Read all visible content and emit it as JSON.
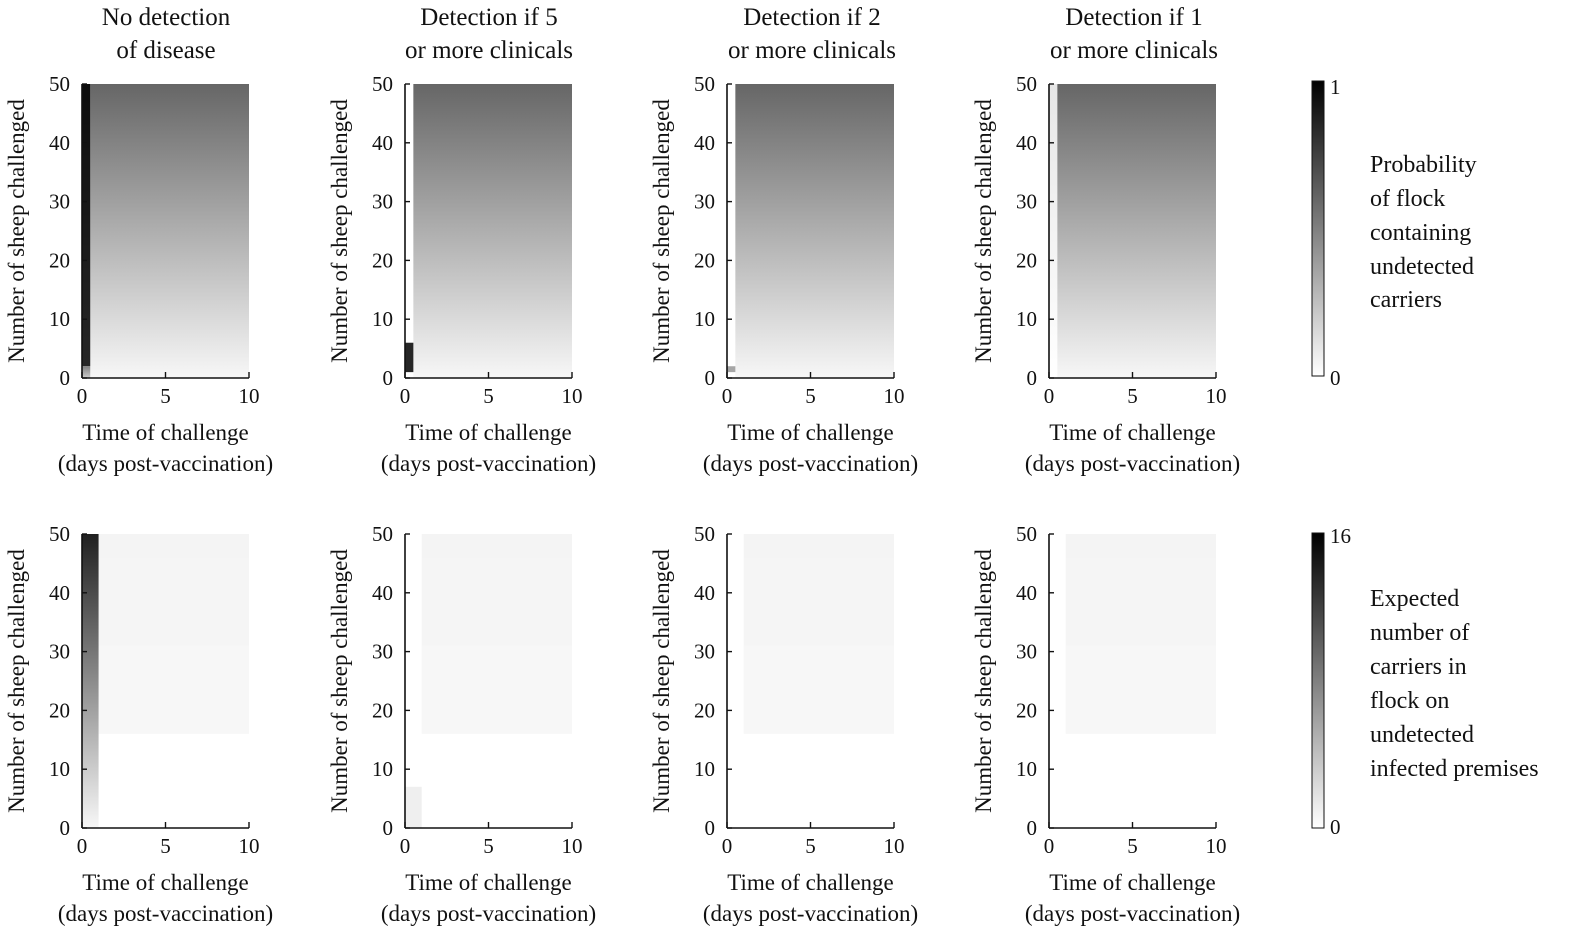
{
  "figure": {
    "columns": [
      {
        "title": [
          "No detection",
          "of disease"
        ]
      },
      {
        "title": [
          "Detection if 5",
          "or more clinicals"
        ]
      },
      {
        "title": [
          "Detection if 2",
          "or more clinicals"
        ]
      },
      {
        "title": [
          "Detection if 1",
          "or more clinicals"
        ]
      }
    ],
    "xlabel": [
      "Time of challenge",
      "(days post-vaccination)"
    ],
    "ylabel": "Number of sheep challenged",
    "colorbars": [
      {
        "min_label": "0",
        "max_label": "1",
        "label": [
          "Probability",
          "of flock",
          "containing",
          "undetected",
          "carriers"
        ]
      },
      {
        "min_label": "0",
        "max_label": "16",
        "label": [
          "Expected",
          "number of",
          "carriers in",
          "flock on",
          "undetected",
          "infected premises"
        ]
      }
    ]
  },
  "chart_data": [
    {
      "type": "heatmap",
      "row": 1,
      "column": 1,
      "title": "No detection of disease",
      "xlabel": "Time of challenge (days post-vaccination)",
      "ylabel": "Number of sheep challenged",
      "xlim": [
        0,
        10
      ],
      "ylim": [
        0,
        50
      ],
      "xticks": [
        0,
        5,
        10
      ],
      "yticks": [
        0,
        10,
        20,
        30,
        40,
        50
      ],
      "colorscale": "white-to-black",
      "clim": [
        0,
        1
      ],
      "colorbar_label": "Probability of flock containing undetected carriers",
      "bands": [
        {
          "x": [
            0,
            0.5
          ],
          "y": [
            2,
            50
          ],
          "value_bottom": 0.85,
          "value_top": 0.95
        },
        {
          "x": [
            0,
            0.5
          ],
          "y": [
            0,
            2
          ],
          "value_bottom": 0.2,
          "value_top": 0.5
        },
        {
          "x": [
            0.5,
            10
          ],
          "y": [
            0,
            50
          ],
          "value_bottom": 0.03,
          "value_top": 0.6
        }
      ]
    },
    {
      "type": "heatmap",
      "row": 1,
      "column": 2,
      "title": "Detection if 5 or more clinicals",
      "xlabel": "Time of challenge (days post-vaccination)",
      "ylabel": "Number of sheep challenged",
      "xlim": [
        0,
        10
      ],
      "ylim": [
        0,
        50
      ],
      "xticks": [
        0,
        5,
        10
      ],
      "yticks": [
        0,
        10,
        20,
        30,
        40,
        50
      ],
      "colorscale": "white-to-black",
      "clim": [
        0,
        1
      ],
      "colorbar_label": "Probability of flock containing undetected carriers",
      "bands": [
        {
          "x": [
            0,
            0.5
          ],
          "y": [
            10,
            50
          ],
          "value_bottom": 0.0,
          "value_top": 0.0
        },
        {
          "x": [
            0,
            1
          ],
          "y": [
            1,
            6
          ],
          "value_bottom": 0.85,
          "value_top": 0.85
        },
        {
          "x": [
            0.5,
            10
          ],
          "y": [
            0,
            50
          ],
          "value_bottom": 0.03,
          "value_top": 0.6
        }
      ]
    },
    {
      "type": "heatmap",
      "row": 1,
      "column": 3,
      "title": "Detection if 2 or more clinicals",
      "xlabel": "Time of challenge (days post-vaccination)",
      "ylabel": "Number of sheep challenged",
      "xlim": [
        0,
        10
      ],
      "ylim": [
        0,
        50
      ],
      "xticks": [
        0,
        5,
        10
      ],
      "yticks": [
        0,
        10,
        20,
        30,
        40,
        50
      ],
      "colorscale": "white-to-black",
      "clim": [
        0,
        1
      ],
      "colorbar_label": "Probability of flock containing undetected carriers",
      "bands": [
        {
          "x": [
            0,
            0.5
          ],
          "y": [
            3,
            50
          ],
          "value_bottom": 0.0,
          "value_top": 0.0
        },
        {
          "x": [
            0,
            0.8
          ],
          "y": [
            1,
            2
          ],
          "value_bottom": 0.35,
          "value_top": 0.35
        },
        {
          "x": [
            0.5,
            10
          ],
          "y": [
            0,
            50
          ],
          "value_bottom": 0.03,
          "value_top": 0.6
        }
      ]
    },
    {
      "type": "heatmap",
      "row": 1,
      "column": 4,
      "title": "Detection if 1 or more clinicals",
      "xlabel": "Time of challenge (days post-vaccination)",
      "ylabel": "Number of sheep challenged",
      "xlim": [
        0,
        10
      ],
      "ylim": [
        0,
        50
      ],
      "xticks": [
        0,
        5,
        10
      ],
      "yticks": [
        0,
        10,
        20,
        30,
        40,
        50
      ],
      "colorscale": "white-to-black",
      "clim": [
        0,
        1
      ],
      "colorbar_label": "Probability of flock containing undetected carriers",
      "bands": [
        {
          "x": [
            0,
            0.5
          ],
          "y": [
            0,
            50
          ],
          "value_bottom": 0.0,
          "value_top": 0.1
        },
        {
          "x": [
            0.5,
            10
          ],
          "y": [
            0,
            50
          ],
          "value_bottom": 0.03,
          "value_top": 0.6
        }
      ]
    },
    {
      "type": "heatmap",
      "row": 2,
      "column": 1,
      "title": "No detection of disease",
      "xlabel": "Time of challenge (days post-vaccination)",
      "ylabel": "Number of sheep challenged",
      "xlim": [
        0,
        10
      ],
      "ylim": [
        0,
        50
      ],
      "xticks": [
        0,
        5,
        10
      ],
      "yticks": [
        0,
        10,
        20,
        30,
        40,
        50
      ],
      "colorscale": "white-to-black",
      "clim": [
        0,
        16
      ],
      "colorbar_label": "Expected number of carriers in flock on undetected infected premises",
      "bands": [
        {
          "x": [
            0,
            1
          ],
          "y": [
            0,
            50
          ],
          "value_bottom": 0.5,
          "value_top": 14
        },
        {
          "x": [
            1,
            10
          ],
          "y": [
            0,
            16
          ],
          "value_bottom": 0.0,
          "value_top": 0.0
        },
        {
          "x": [
            1,
            10
          ],
          "y": [
            16,
            31
          ],
          "value_bottom": 0.5,
          "value_top": 0.5
        },
        {
          "x": [
            1,
            10
          ],
          "y": [
            31,
            46
          ],
          "value_bottom": 0.6,
          "value_top": 0.6
        },
        {
          "x": [
            1,
            10
          ],
          "y": [
            46,
            50
          ],
          "value_bottom": 0.7,
          "value_top": 0.7
        }
      ]
    },
    {
      "type": "heatmap",
      "row": 2,
      "column": 2,
      "title": "Detection if 5 or more clinicals",
      "xlabel": "Time of challenge (days post-vaccination)",
      "ylabel": "Number of sheep challenged",
      "xlim": [
        0,
        10
      ],
      "ylim": [
        0,
        50
      ],
      "xticks": [
        0,
        5,
        10
      ],
      "yticks": [
        0,
        10,
        20,
        30,
        40,
        50
      ],
      "colorscale": "white-to-black",
      "clim": [
        0,
        16
      ],
      "colorbar_label": "Expected number of carriers in flock on undetected infected premises",
      "bands": [
        {
          "x": [
            0,
            1
          ],
          "y": [
            0,
            7
          ],
          "value_bottom": 1.0,
          "value_top": 1.0
        },
        {
          "x": [
            1,
            10
          ],
          "y": [
            16,
            31
          ],
          "value_bottom": 0.5,
          "value_top": 0.5
        },
        {
          "x": [
            1,
            10
          ],
          "y": [
            31,
            46
          ],
          "value_bottom": 0.6,
          "value_top": 0.6
        },
        {
          "x": [
            1,
            10
          ],
          "y": [
            46,
            50
          ],
          "value_bottom": 0.7,
          "value_top": 0.7
        }
      ]
    },
    {
      "type": "heatmap",
      "row": 2,
      "column": 3,
      "title": "Detection if 2 or more clinicals",
      "xlabel": "Time of challenge (days post-vaccination)",
      "ylabel": "Number of sheep challenged",
      "xlim": [
        0,
        10
      ],
      "ylim": [
        0,
        50
      ],
      "xticks": [
        0,
        5,
        10
      ],
      "yticks": [
        0,
        10,
        20,
        30,
        40,
        50
      ],
      "colorscale": "white-to-black",
      "clim": [
        0,
        16
      ],
      "colorbar_label": "Expected number of carriers in flock on undetected infected premises",
      "bands": [
        {
          "x": [
            1,
            10
          ],
          "y": [
            16,
            31
          ],
          "value_bottom": 0.5,
          "value_top": 0.5
        },
        {
          "x": [
            1,
            10
          ],
          "y": [
            31,
            46
          ],
          "value_bottom": 0.6,
          "value_top": 0.6
        },
        {
          "x": [
            1,
            10
          ],
          "y": [
            46,
            50
          ],
          "value_bottom": 0.7,
          "value_top": 0.7
        }
      ]
    },
    {
      "type": "heatmap",
      "row": 2,
      "column": 4,
      "title": "Detection if 1 or more clinicals",
      "xlabel": "Time of challenge (days post-vaccination)",
      "ylabel": "Number of sheep challenged",
      "xlim": [
        0,
        10
      ],
      "ylim": [
        0,
        50
      ],
      "xticks": [
        0,
        5,
        10
      ],
      "yticks": [
        0,
        10,
        20,
        30,
        40,
        50
      ],
      "colorscale": "white-to-black",
      "clim": [
        0,
        16
      ],
      "colorbar_label": "Expected number of carriers in flock on undetected infected premises",
      "bands": [
        {
          "x": [
            1,
            10
          ],
          "y": [
            16,
            31
          ],
          "value_bottom": 0.5,
          "value_top": 0.5
        },
        {
          "x": [
            1,
            10
          ],
          "y": [
            31,
            46
          ],
          "value_bottom": 0.6,
          "value_top": 0.6
        },
        {
          "x": [
            1,
            10
          ],
          "y": [
            46,
            50
          ],
          "value_bottom": 0.7,
          "value_top": 0.7
        }
      ]
    }
  ]
}
